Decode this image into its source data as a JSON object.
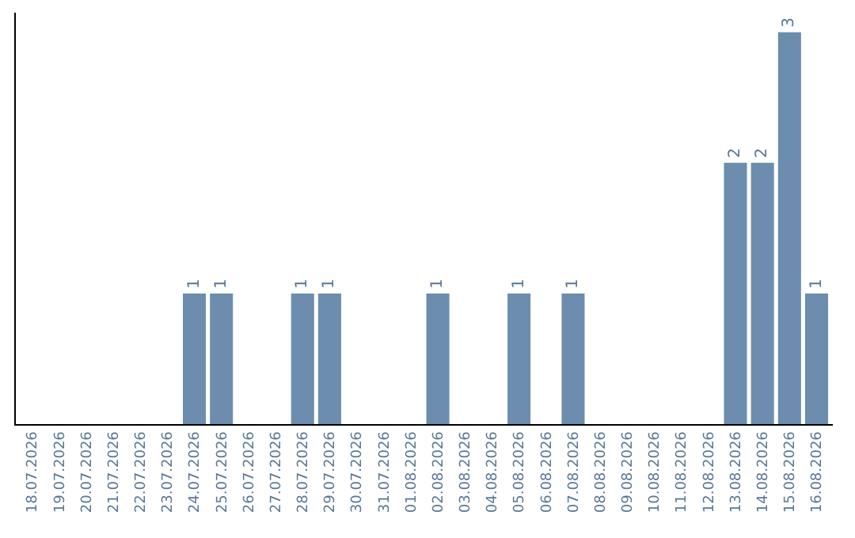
{
  "chart_data": {
    "type": "bar",
    "categories": [
      "18.07.2026",
      "19.07.2026",
      "20.07.2026",
      "21.07.2026",
      "22.07.2026",
      "23.07.2026",
      "24.07.2026",
      "25.07.2026",
      "26.07.2026",
      "27.07.2026",
      "28.07.2026",
      "29.07.2026",
      "30.07.2026",
      "31.07.2026",
      "01.08.2026",
      "02.08.2026",
      "03.08.2026",
      "04.08.2026",
      "05.08.2026",
      "06.08.2026",
      "07.08.2026",
      "08.08.2026",
      "09.08.2026",
      "10.08.2026",
      "11.08.2026",
      "12.08.2026",
      "13.08.2026",
      "14.08.2026",
      "15.08.2026",
      "16.08.2026"
    ],
    "values": [
      0,
      0,
      0,
      0,
      0,
      0,
      1,
      1,
      0,
      0,
      1,
      1,
      0,
      0,
      0,
      1,
      0,
      0,
      1,
      0,
      1,
      0,
      0,
      0,
      0,
      0,
      2,
      2,
      3,
      1
    ],
    "value_labels": [
      null,
      null,
      null,
      null,
      null,
      null,
      "1",
      "1",
      null,
      null,
      "1",
      "1",
      null,
      null,
      null,
      "1",
      null,
      null,
      "1",
      null,
      "1",
      null,
      null,
      null,
      null,
      null,
      "2",
      "2",
      "3",
      "1"
    ],
    "color": "#6c8dad",
    "ylim": [
      0,
      3.15
    ],
    "tick_labels": "x",
    "legend": false
  }
}
